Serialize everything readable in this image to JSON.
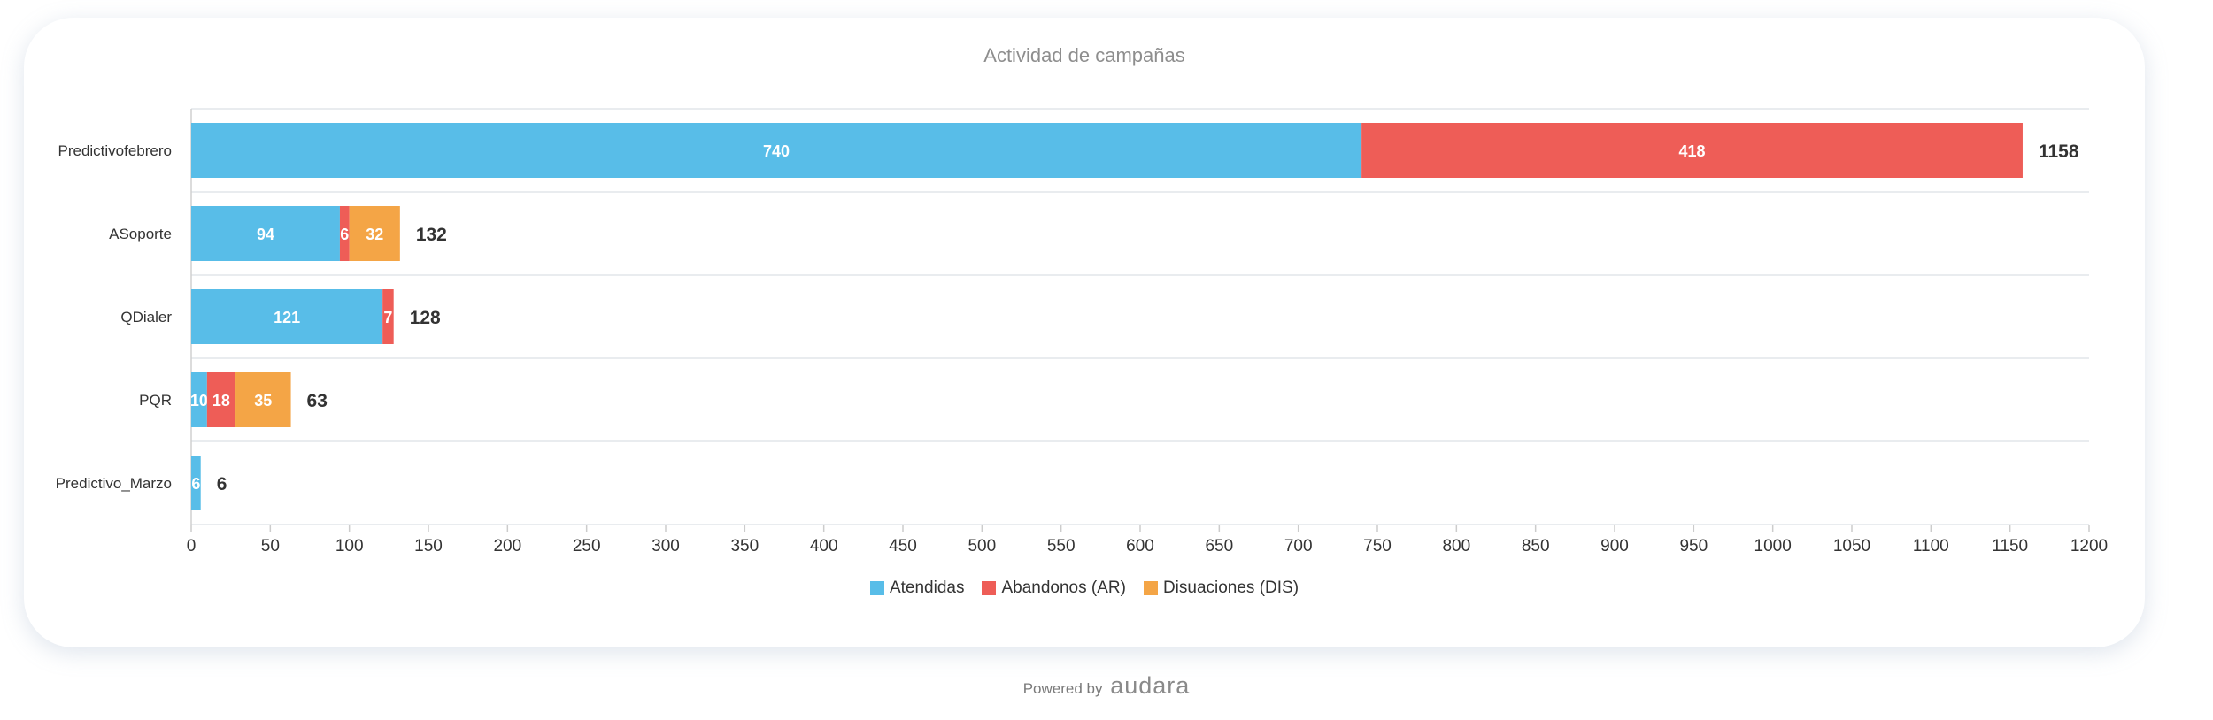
{
  "chart_data": {
    "type": "bar",
    "orientation": "horizontal",
    "stacked": true,
    "title": "Actividad de campañas",
    "categories": [
      "Predictivofebrero",
      "ASoporte",
      "QDialer",
      "PQR",
      "Predictivo_Marzo"
    ],
    "series": [
      {
        "name": "Atendidas",
        "color": "#58bde8",
        "values": [
          740,
          94,
          121,
          10,
          6
        ]
      },
      {
        "name": "Abandonos (AR)",
        "color": "#ee5d57",
        "values": [
          418,
          6,
          7,
          18,
          0
        ]
      },
      {
        "name": "Disuaciones (DIS)",
        "color": "#f4a546",
        "values": [
          0,
          32,
          0,
          35,
          0
        ]
      }
    ],
    "totals": [
      1158,
      132,
      128,
      63,
      6
    ],
    "xlim": [
      0,
      1200
    ],
    "xticks": [
      "0",
      "50",
      "100",
      "150",
      "200",
      "250",
      "300",
      "350",
      "400",
      "450",
      "500",
      "550",
      "600",
      "650",
      "700",
      "750",
      "800",
      "850",
      "900",
      "950",
      "1000",
      "1050",
      "1100",
      "1150",
      "1200"
    ],
    "grid": true,
    "legend": "bottom"
  },
  "footer": {
    "powered_by": "Powered by",
    "brand": "audara"
  }
}
